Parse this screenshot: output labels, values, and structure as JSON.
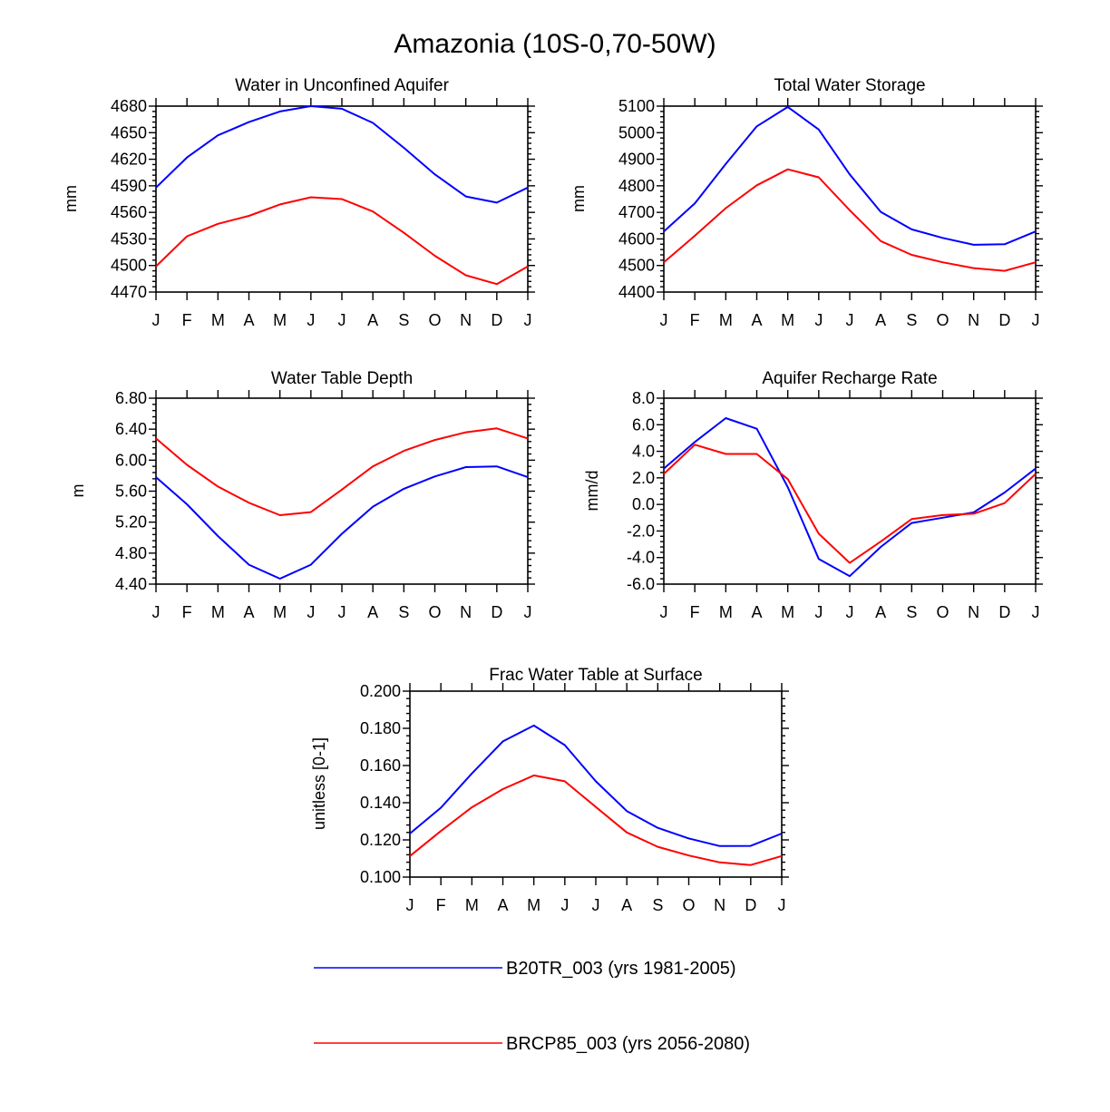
{
  "title": "Amazonia (10S-0,70-50W)",
  "colors": {
    "series_1": "#0000ff",
    "series_2": "#ff0000"
  },
  "legend": [
    {
      "label": "B20TR_003 (yrs 1981-2005)",
      "color": "#0000ff"
    },
    {
      "label": "BRCP85_003 (yrs 2056-2080)",
      "color": "#ff0000"
    }
  ],
  "chart_data": [
    {
      "type": "line",
      "title": "Water in Unconfined Aquifer",
      "ylabel": "mm",
      "xlabel": "",
      "categories": [
        "J",
        "F",
        "M",
        "A",
        "M",
        "J",
        "J",
        "A",
        "S",
        "O",
        "N",
        "D",
        "J"
      ],
      "ylim": [
        4470,
        4680
      ],
      "yticks": [
        "4470",
        "4500",
        "4530",
        "4560",
        "4590",
        "4620",
        "4650",
        "4680"
      ],
      "series": [
        {
          "name": "B20TR_003 (yrs 1981-2005)",
          "color": "#0000ff",
          "values": [
            4588,
            4622,
            4647,
            4662,
            4674,
            4680,
            4677,
            4661,
            4633,
            4603,
            4578,
            4571,
            4588
          ]
        },
        {
          "name": "BRCP85_003 (yrs 2056-2080)",
          "color": "#ff0000",
          "values": [
            4499,
            4533,
            4547,
            4556,
            4569,
            4577,
            4575,
            4561,
            4537,
            4511,
            4489,
            4479,
            4499
          ]
        }
      ]
    },
    {
      "type": "line",
      "title": "Total Water Storage",
      "ylabel": "mm",
      "xlabel": "",
      "categories": [
        "J",
        "F",
        "M",
        "A",
        "M",
        "J",
        "J",
        "A",
        "S",
        "O",
        "N",
        "D",
        "J"
      ],
      "ylim": [
        4400,
        5100
      ],
      "yticks": [
        "4400",
        "4500",
        "4600",
        "4700",
        "4800",
        "4900",
        "5000",
        "5100"
      ],
      "series": [
        {
          "name": "B20TR_003 (yrs 1981-2005)",
          "color": "#0000ff",
          "values": [
            4628,
            4734,
            4882,
            5024,
            5097,
            5012,
            4843,
            4702,
            4636,
            4604,
            4578,
            4580,
            4628
          ]
        },
        {
          "name": "BRCP85_003 (yrs 2056-2080)",
          "color": "#ff0000",
          "values": [
            4512,
            4612,
            4716,
            4802,
            4862,
            4832,
            4708,
            4592,
            4540,
            4512,
            4490,
            4480,
            4512
          ]
        }
      ]
    },
    {
      "type": "line",
      "title": "Water Table Depth",
      "ylabel": "m",
      "xlabel": "",
      "categories": [
        "J",
        "F",
        "M",
        "A",
        "M",
        "J",
        "J",
        "A",
        "S",
        "O",
        "N",
        "D",
        "J"
      ],
      "ylim": [
        4.4,
        6.8
      ],
      "yticks": [
        "4.40",
        "4.80",
        "5.20",
        "5.60",
        "6.00",
        "6.40",
        "6.80"
      ],
      "series": [
        {
          "name": "B20TR_003 (yrs 1981-2005)",
          "color": "#0000ff",
          "values": [
            5.78,
            5.43,
            5.02,
            4.65,
            4.47,
            4.65,
            5.05,
            5.4,
            5.63,
            5.79,
            5.91,
            5.92,
            5.78
          ]
        },
        {
          "name": "BRCP85_003 (yrs 2056-2080)",
          "color": "#ff0000",
          "values": [
            6.28,
            5.94,
            5.66,
            5.45,
            5.29,
            5.33,
            5.62,
            5.92,
            6.12,
            6.26,
            6.36,
            6.41,
            6.28
          ]
        }
      ]
    },
    {
      "type": "line",
      "title": "Aquifer Recharge Rate",
      "ylabel": "mm/d",
      "xlabel": "",
      "categories": [
        "J",
        "F",
        "M",
        "A",
        "M",
        "J",
        "J",
        "A",
        "S",
        "O",
        "N",
        "D",
        "J"
      ],
      "ylim": [
        -6,
        8
      ],
      "yticks": [
        "-6.0",
        "-4.0",
        "-2.0",
        "0.0",
        "2.0",
        "4.0",
        "6.0",
        "8.0"
      ],
      "series": [
        {
          "name": "B20TR_003 (yrs 1981-2005)",
          "color": "#0000ff",
          "values": [
            2.7,
            4.7,
            6.5,
            5.7,
            1.3,
            -4.1,
            -5.4,
            -3.2,
            -1.4,
            -1.0,
            -0.6,
            0.9,
            2.7
          ]
        },
        {
          "name": "BRCP85_003 (yrs 2056-2080)",
          "color": "#ff0000",
          "values": [
            2.3,
            4.5,
            3.8,
            3.8,
            1.9,
            -2.2,
            -4.4,
            -2.8,
            -1.1,
            -0.8,
            -0.7,
            0.1,
            2.3
          ]
        }
      ]
    },
    {
      "type": "line",
      "title": "Frac Water Table at Surface",
      "ylabel": "unitless [0-1]",
      "xlabel": "",
      "categories": [
        "J",
        "F",
        "M",
        "A",
        "M",
        "J",
        "J",
        "A",
        "S",
        "O",
        "N",
        "D",
        "J"
      ],
      "ylim": [
        0.1,
        0.2
      ],
      "yticks": [
        "0.100",
        "0.120",
        "0.140",
        "0.160",
        "0.180",
        "0.200"
      ],
      "series": [
        {
          "name": "B20TR_003 (yrs 1981-2005)",
          "color": "#0000ff",
          "values": [
            0.1234,
            0.1373,
            0.1557,
            0.173,
            0.1815,
            0.171,
            0.1515,
            0.1355,
            0.1265,
            0.1208,
            0.1167,
            0.1168,
            0.1234
          ]
        },
        {
          "name": "BRCP85_003 (yrs 2056-2080)",
          "color": "#ff0000",
          "values": [
            0.1113,
            0.1248,
            0.1375,
            0.1473,
            0.1547,
            0.1515,
            0.1377,
            0.124,
            0.1163,
            0.1116,
            0.1079,
            0.1065,
            0.1113
          ]
        }
      ]
    }
  ]
}
